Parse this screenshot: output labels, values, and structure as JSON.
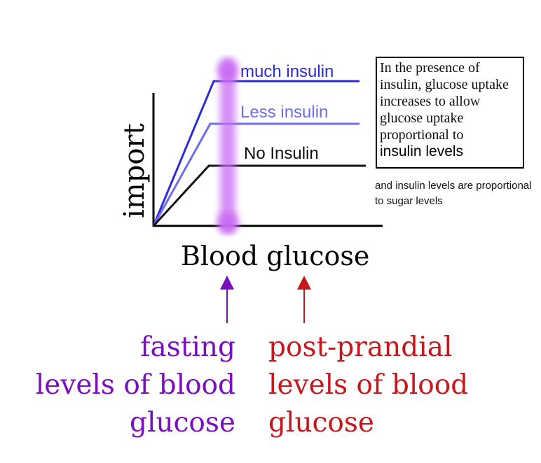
{
  "diagram": {
    "y_axis_label": "import",
    "x_axis_label": "Blood glucose",
    "curves": [
      {
        "label": "much insulin",
        "color": "#2a2ad6"
      },
      {
        "label": "Less insulin",
        "color": "#6d6df0"
      },
      {
        "label": "No Insulin",
        "color": "#111111"
      }
    ],
    "highlight_color": "#c86cf2"
  },
  "info_box": {
    "body": "In the presence of insulin, glucose uptake increases to allow glucose uptake proportional to",
    "emphasis": "insulin levels"
  },
  "side_note": "and insulin levels are proportional to sugar levels",
  "markers": {
    "fasting": {
      "text": "fasting\nlevels of blood\nglucose",
      "color": "#7a0fbf"
    },
    "post_prandial": {
      "text": "post-prandial\nlevels of blood\nglucose",
      "color": "#c8171c"
    }
  }
}
